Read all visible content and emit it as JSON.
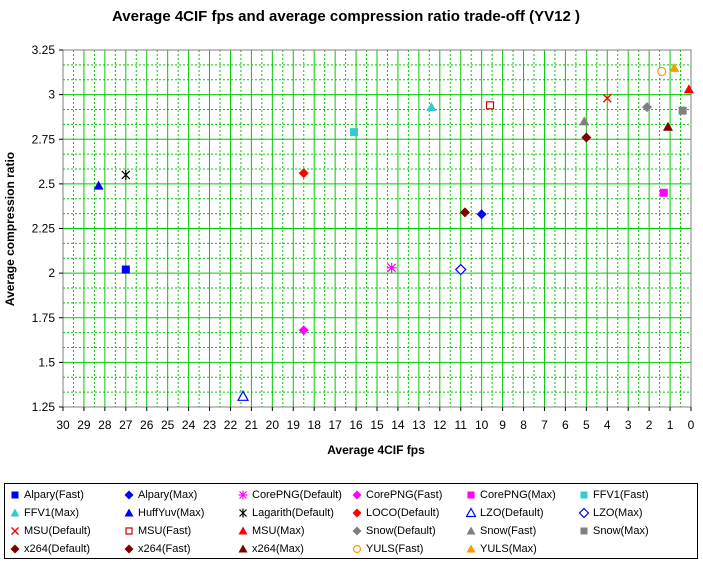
{
  "chart_data": {
    "type": "scatter",
    "title": "Average 4CIF  fps and average compression ratio trade-off (YV12 )",
    "xlabel": "Average 4CIF fps",
    "ylabel": "Average compression ratio",
    "xlim": [
      30,
      0
    ],
    "x_reversed": true,
    "ylim": [
      1.25,
      3.25
    ],
    "x_ticks": [
      "30",
      "29",
      "28",
      "27",
      "26",
      "25",
      "24",
      "23",
      "22",
      "21",
      "20",
      "19",
      "18",
      "17",
      "16",
      "15",
      "14",
      "13",
      "12",
      "11",
      "10",
      "9",
      "8",
      "7",
      "6",
      "5",
      "4",
      "3",
      "2",
      "1",
      "0"
    ],
    "y_ticks": [
      "1.25",
      "1.5",
      "1.75",
      "2",
      "2.25",
      "2.5",
      "2.75",
      "3",
      "3.25"
    ],
    "grid": true,
    "legend_position": "bottom",
    "series": [
      {
        "name": "Alpary(Fast)",
        "marker": "square-filled",
        "color": "#0000ff",
        "x": 27.0,
        "y": 2.02
      },
      {
        "name": "Alpary(Max)",
        "marker": "diamond-filled",
        "color": "#0000ff",
        "x": 10.0,
        "y": 2.33
      },
      {
        "name": "CorePNG(Default)",
        "marker": "star",
        "color": "#ff00ff",
        "x": 14.3,
        "y": 2.03
      },
      {
        "name": "CorePNG(Fast)",
        "marker": "diamond-filled",
        "color": "#ff00ff",
        "x": 18.5,
        "y": 1.68
      },
      {
        "name": "CorePNG(Max)",
        "marker": "square-filled",
        "color": "#ff00ff",
        "x": 1.3,
        "y": 2.45
      },
      {
        "name": "FFV1(Fast)",
        "marker": "square-filled",
        "color": "#33cccc",
        "x": 16.1,
        "y": 2.79
      },
      {
        "name": "FFV1(Max)",
        "marker": "triangle-filled",
        "color": "#33cccc",
        "x": 12.4,
        "y": 2.93
      },
      {
        "name": "HuffYuv(Max)",
        "marker": "triangle-filled",
        "color": "#0000ff",
        "x": 28.3,
        "y": 2.49
      },
      {
        "name": "Lagarith(Default)",
        "marker": "asterisk",
        "color": "#000000",
        "x": 27.0,
        "y": 2.55
      },
      {
        "name": "LOCO(Default)",
        "marker": "diamond-filled",
        "color": "#ff0000",
        "x": 18.5,
        "y": 2.56
      },
      {
        "name": "LZO(Default)",
        "marker": "triangle-open",
        "color": "#0000ff",
        "x": 21.4,
        "y": 1.31
      },
      {
        "name": "LZO(Max)",
        "marker": "diamond-open",
        "color": "#0000ff",
        "x": 11.0,
        "y": 2.02
      },
      {
        "name": "MSU(Default)",
        "marker": "x",
        "color": "#ff0000",
        "x": 4.0,
        "y": 2.98
      },
      {
        "name": "MSU(Fast)",
        "marker": "square-open",
        "color": "#cc0000",
        "x": 9.6,
        "y": 2.94
      },
      {
        "name": "MSU(Max)",
        "marker": "triangle-filled",
        "color": "#ff0000",
        "x": 0.1,
        "y": 3.03
      },
      {
        "name": "Snow(Default)",
        "marker": "diamond-filled",
        "color": "#808080",
        "x": 2.1,
        "y": 2.93
      },
      {
        "name": "Snow(Fast)",
        "marker": "triangle-filled",
        "color": "#808080",
        "x": 5.1,
        "y": 2.85
      },
      {
        "name": "Snow(Max)",
        "marker": "square-filled",
        "color": "#808080",
        "x": 0.4,
        "y": 2.91
      },
      {
        "name": "x264(Default)",
        "marker": "diamond-filled",
        "color": "#800000",
        "x": 5.0,
        "y": 2.76
      },
      {
        "name": "x264(Fast)",
        "marker": "diamond-filled",
        "color": "#800000",
        "x": 10.8,
        "y": 2.34
      },
      {
        "name": "x264(Max)",
        "marker": "triangle-filled",
        "color": "#800000",
        "x": 1.1,
        "y": 2.82
      },
      {
        "name": "YULS(Fast)",
        "marker": "circle-open",
        "color": "#ff9900",
        "x": 1.4,
        "y": 3.13
      },
      {
        "name": "YULS(Max)",
        "marker": "triangle-filled",
        "color": "#ff9900",
        "x": 0.8,
        "y": 3.15
      }
    ]
  },
  "style": {
    "grid_color": "#00cc00",
    "plot_border_color": "#808080",
    "background": "#ffffff"
  }
}
